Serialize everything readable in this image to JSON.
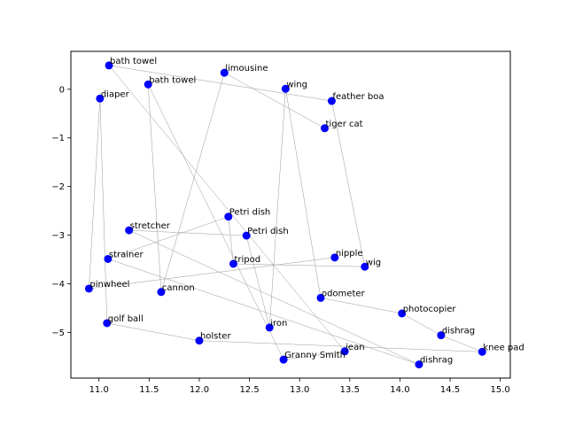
{
  "chart_data": {
    "type": "scatter",
    "title": "",
    "xlabel": "",
    "ylabel": "",
    "xlim": [
      10.72,
      15.1
    ],
    "ylim": [
      -5.94,
      0.78
    ],
    "xticks": [
      11.0,
      11.5,
      12.0,
      12.5,
      13.0,
      13.5,
      14.0,
      14.5,
      15.0
    ],
    "yticks": [
      0,
      -1,
      -2,
      -3,
      -4,
      -5
    ],
    "xtick_labels": [
      "11.0",
      "11.5",
      "12.0",
      "12.5",
      "13.0",
      "13.5",
      "14.0",
      "14.5",
      "15.0"
    ],
    "ytick_labels": [
      "0",
      "−1",
      "−2",
      "−3",
      "−4",
      "−5"
    ],
    "grid": false,
    "marker_color": "#0000ff",
    "line_color": "#999999",
    "points": [
      {
        "label": "bath towel",
        "x": 11.1,
        "y": 0.49
      },
      {
        "label": "bath towel",
        "x": 11.49,
        "y": 0.1
      },
      {
        "label": "limousine",
        "x": 12.25,
        "y": 0.34
      },
      {
        "label": "wing",
        "x": 12.86,
        "y": 0.01
      },
      {
        "label": "diaper",
        "x": 11.01,
        "y": -0.19
      },
      {
        "label": "feather boa",
        "x": 13.32,
        "y": -0.24
      },
      {
        "label": "tiger cat",
        "x": 13.25,
        "y": -0.8
      },
      {
        "label": "Petri dish",
        "x": 12.29,
        "y": -2.62
      },
      {
        "label": "Petri dish",
        "x": 12.47,
        "y": -3.01
      },
      {
        "label": "stretcher",
        "x": 11.3,
        "y": -2.9
      },
      {
        "label": "strainer",
        "x": 11.09,
        "y": -3.49
      },
      {
        "label": "nipple",
        "x": 13.35,
        "y": -3.46
      },
      {
        "label": "wig",
        "x": 13.65,
        "y": -3.65
      },
      {
        "label": "tripod",
        "x": 12.34,
        "y": -3.59
      },
      {
        "label": "pinwheel",
        "x": 10.9,
        "y": -4.1
      },
      {
        "label": "cannon",
        "x": 11.62,
        "y": -4.17
      },
      {
        "label": "odometer",
        "x": 13.21,
        "y": -4.29
      },
      {
        "label": "photocopier",
        "x": 14.02,
        "y": -4.61
      },
      {
        "label": "golf ball",
        "x": 11.08,
        "y": -4.81
      },
      {
        "label": "iron",
        "x": 12.7,
        "y": -4.9
      },
      {
        "label": "dishrag",
        "x": 14.41,
        "y": -5.06
      },
      {
        "label": "holster",
        "x": 12.0,
        "y": -5.17
      },
      {
        "label": "jean",
        "x": 13.45,
        "y": -5.39
      },
      {
        "label": "knee pad",
        "x": 14.82,
        "y": -5.4
      },
      {
        "label": "Granny Smith",
        "x": 12.84,
        "y": -5.56
      },
      {
        "label": "dishrag",
        "x": 14.19,
        "y": -5.66
      }
    ],
    "path_order": [
      11,
      14,
      4,
      18,
      21,
      23,
      20,
      17,
      16,
      3,
      19,
      8,
      9,
      25,
      10,
      7,
      13,
      12,
      5,
      0,
      22,
      24,
      1,
      15,
      2,
      6
    ]
  }
}
